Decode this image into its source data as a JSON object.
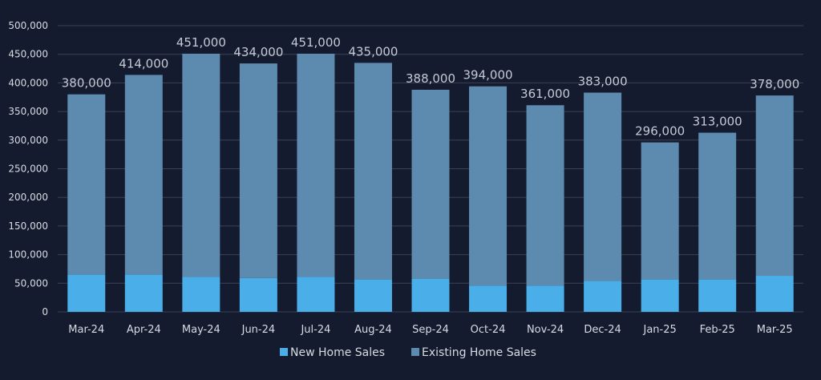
{
  "chart_data": {
    "type": "bar",
    "stacked": true,
    "categories": [
      "Mar-24",
      "Apr-24",
      "May-24",
      "Jun-24",
      "Jul-24",
      "Aug-24",
      "Sep-24",
      "Oct-24",
      "Nov-24",
      "Dec-24",
      "Jan-25",
      "Feb-25",
      "Mar-25"
    ],
    "series": [
      {
        "name": "New Home Sales",
        "color": "#4aaee8",
        "values": [
          65000,
          65000,
          61000,
          59000,
          61000,
          57000,
          58000,
          46000,
          46000,
          54000,
          57000,
          57000,
          63000
        ]
      },
      {
        "name": "Existing Home Sales",
        "color": "#5d8aaf",
        "values": [
          315000,
          349000,
          390000,
          375000,
          390000,
          378000,
          330000,
          348000,
          315000,
          329000,
          239000,
          256000,
          315000
        ]
      }
    ],
    "totals": [
      380000,
      414000,
      451000,
      434000,
      451000,
      435000,
      388000,
      394000,
      361000,
      383000,
      296000,
      313000,
      378000
    ],
    "total_labels": [
      "380,000",
      "414,000",
      "451,000",
      "434,000",
      "451,000",
      "435,000",
      "388,000",
      "394,000",
      "361,000",
      "383,000",
      "296,000",
      "313,000",
      "378,000"
    ],
    "y_ticks": [
      "0",
      "50,000",
      "100,000",
      "150,000",
      "200,000",
      "250,000",
      "300,000",
      "350,000",
      "400,000",
      "450,000",
      "500,000"
    ],
    "ylim": [
      0,
      500000
    ],
    "grid": true,
    "legend_position": "bottom-center",
    "title": "",
    "xlabel": "",
    "ylabel": "",
    "colors": {
      "background": "#151b2e",
      "grid": "#3a4256",
      "axis_text": "#d6dbe3",
      "data_label": "#c4cad4"
    }
  }
}
